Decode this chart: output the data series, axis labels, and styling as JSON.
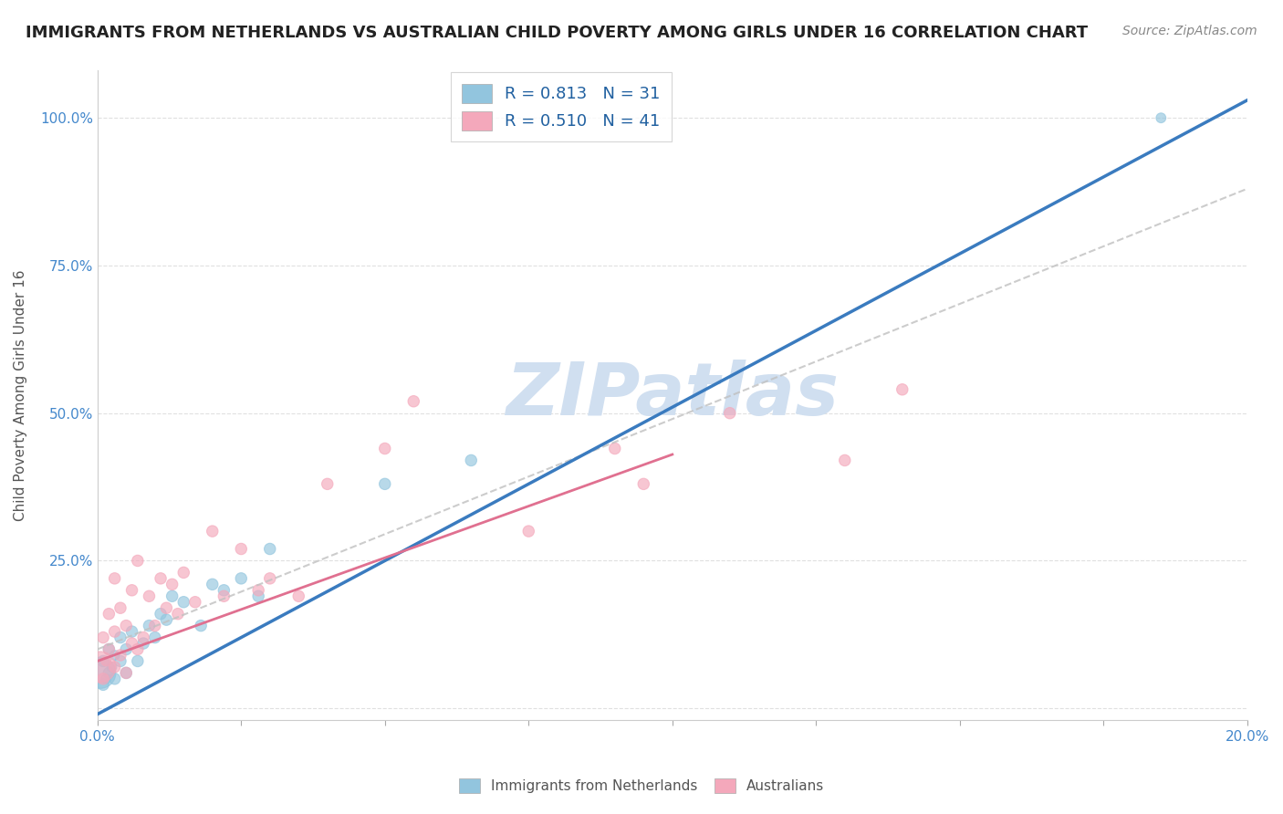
{
  "title": "IMMIGRANTS FROM NETHERLANDS VS AUSTRALIAN CHILD POVERTY AMONG GIRLS UNDER 16 CORRELATION CHART",
  "source": "Source: ZipAtlas.com",
  "ylabel": "Child Poverty Among Girls Under 16",
  "xlim": [
    0.0,
    0.2
  ],
  "ylim": [
    -0.02,
    1.08
  ],
  "xticks": [
    0.0,
    0.025,
    0.05,
    0.075,
    0.1,
    0.125,
    0.15,
    0.175,
    0.2
  ],
  "xtick_labels": [
    "0.0%",
    "",
    "",
    "",
    "",
    "",
    "",
    "",
    "20.0%"
  ],
  "yticks": [
    0.0,
    0.25,
    0.5,
    0.75,
    1.0
  ],
  "ytick_labels": [
    "",
    "25.0%",
    "50.0%",
    "75.0%",
    "100.0%"
  ],
  "legend_r1": "R = 0.813",
  "legend_n1": "N = 31",
  "legend_r2": "R = 0.510",
  "legend_n2": "N = 41",
  "blue_color": "#92c5de",
  "pink_color": "#f4a8bb",
  "trend_blue": "#3a7bbf",
  "trend_pink": "#e07090",
  "trend_gray": "#c0c0c0",
  "watermark": "ZIPatlas",
  "watermark_color": "#d0dff0",
  "blue_scatter_x": [
    0.0005,
    0.001,
    0.001,
    0.0015,
    0.002,
    0.002,
    0.0025,
    0.003,
    0.003,
    0.004,
    0.004,
    0.005,
    0.005,
    0.006,
    0.007,
    0.008,
    0.009,
    0.01,
    0.011,
    0.012,
    0.013,
    0.015,
    0.018,
    0.02,
    0.022,
    0.025,
    0.028,
    0.03,
    0.05,
    0.065,
    0.185
  ],
  "blue_scatter_y": [
    0.06,
    0.04,
    0.08,
    0.05,
    0.06,
    0.1,
    0.07,
    0.05,
    0.09,
    0.08,
    0.12,
    0.06,
    0.1,
    0.13,
    0.08,
    0.11,
    0.14,
    0.12,
    0.16,
    0.15,
    0.19,
    0.18,
    0.14,
    0.21,
    0.2,
    0.22,
    0.19,
    0.27,
    0.38,
    0.42,
    1.0
  ],
  "blue_scatter_size": [
    600,
    80,
    80,
    60,
    80,
    80,
    60,
    80,
    60,
    80,
    80,
    80,
    80,
    80,
    80,
    80,
    80,
    80,
    80,
    80,
    80,
    80,
    80,
    80,
    80,
    80,
    80,
    80,
    80,
    80,
    60
  ],
  "pink_scatter_x": [
    0.0005,
    0.001,
    0.001,
    0.0015,
    0.002,
    0.002,
    0.003,
    0.003,
    0.003,
    0.004,
    0.004,
    0.005,
    0.005,
    0.006,
    0.006,
    0.007,
    0.007,
    0.008,
    0.009,
    0.01,
    0.011,
    0.012,
    0.013,
    0.014,
    0.015,
    0.017,
    0.02,
    0.022,
    0.025,
    0.028,
    0.03,
    0.035,
    0.04,
    0.05,
    0.055,
    0.075,
    0.09,
    0.095,
    0.11,
    0.13,
    0.14
  ],
  "pink_scatter_y": [
    0.07,
    0.05,
    0.12,
    0.08,
    0.1,
    0.16,
    0.07,
    0.13,
    0.22,
    0.09,
    0.17,
    0.06,
    0.14,
    0.11,
    0.2,
    0.1,
    0.25,
    0.12,
    0.19,
    0.14,
    0.22,
    0.17,
    0.21,
    0.16,
    0.23,
    0.18,
    0.3,
    0.19,
    0.27,
    0.2,
    0.22,
    0.19,
    0.38,
    0.44,
    0.52,
    0.3,
    0.44,
    0.38,
    0.5,
    0.42,
    0.54
  ],
  "pink_scatter_size": [
    600,
    80,
    80,
    60,
    80,
    80,
    80,
    80,
    80,
    80,
    80,
    80,
    80,
    80,
    80,
    80,
    80,
    80,
    80,
    80,
    80,
    80,
    80,
    80,
    80,
    80,
    80,
    80,
    80,
    80,
    80,
    80,
    80,
    80,
    80,
    80,
    80,
    80,
    80,
    80,
    80
  ],
  "blue_trend_x0": 0.0,
  "blue_trend_y0": -0.01,
  "blue_trend_x1": 0.2,
  "blue_trend_y1": 1.03,
  "pink_trend_x0": 0.0,
  "pink_trend_y0": 0.08,
  "pink_trend_x1": 0.1,
  "pink_trend_y1": 0.43,
  "gray_trend_x0": 0.0,
  "gray_trend_y0": 0.1,
  "gray_trend_x1": 0.2,
  "gray_trend_y1": 0.88,
  "background_color": "#ffffff",
  "legend_color": "#2060a0",
  "title_fontsize": 13,
  "label_fontsize": 11,
  "tick_color": "#4488cc"
}
